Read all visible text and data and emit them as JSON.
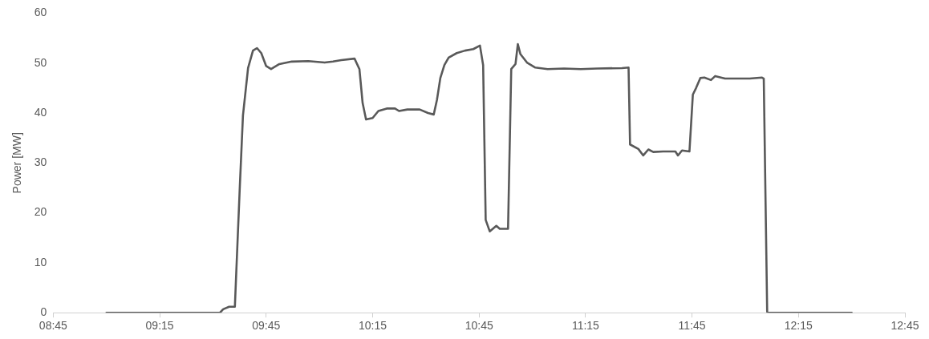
{
  "chart_data": {
    "type": "line",
    "ylabel": "Power [MW]",
    "grid": false,
    "marker": "none",
    "line_style": "solid",
    "legend": false,
    "xlim": [
      8.75,
      12.75
    ],
    "xticks": [
      {
        "value": 8.75,
        "label": "08:45"
      },
      {
        "value": 9.25,
        "label": "09:15"
      },
      {
        "value": 9.75,
        "label": "09:45"
      },
      {
        "value": 10.25,
        "label": "10:15"
      },
      {
        "value": 10.75,
        "label": "10:45"
      },
      {
        "value": 11.25,
        "label": "11:15"
      },
      {
        "value": 11.75,
        "label": "11:45"
      },
      {
        "value": 12.25,
        "label": "12:15"
      },
      {
        "value": 12.75,
        "label": "12:45"
      }
    ],
    "ylim": [
      0,
      60
    ],
    "yticks": [
      0,
      10,
      20,
      30,
      40,
      50,
      60
    ],
    "x": [
      9.0,
      9.533,
      9.548,
      9.576,
      9.603,
      9.61,
      9.626,
      9.641,
      9.665,
      9.688,
      9.707,
      9.727,
      9.75,
      9.773,
      9.812,
      9.87,
      9.948,
      10.025,
      10.064,
      10.103,
      10.165,
      10.188,
      10.203,
      10.219,
      10.25,
      10.277,
      10.316,
      10.355,
      10.374,
      10.413,
      10.471,
      10.51,
      10.537,
      10.552,
      10.568,
      10.587,
      10.607,
      10.645,
      10.684,
      10.723,
      10.754,
      10.769,
      10.781,
      10.8,
      10.831,
      10.847,
      10.886,
      10.901,
      10.921,
      10.932,
      10.944,
      10.975,
      11.014,
      11.072,
      11.149,
      11.227,
      11.304,
      11.421,
      11.452,
      11.459,
      11.498,
      11.521,
      11.545,
      11.568,
      11.614,
      11.672,
      11.684,
      11.703,
      11.738,
      11.754,
      11.769,
      11.789,
      11.808,
      11.839,
      11.859,
      11.905,
      11.963,
      12.021,
      12.079,
      12.087,
      12.103,
      12.118,
      12.5
    ],
    "series": [
      {
        "color": "#595959",
        "values": [
          0,
          0,
          0.7,
          1.2,
          1.2,
          8.5,
          25,
          39.5,
          49,
          52.5,
          53,
          52,
          49.4,
          48.8,
          49.8,
          50.3,
          50.4,
          50.1,
          50.3,
          50.6,
          50.9,
          48.8,
          42,
          38.7,
          39,
          40.4,
          40.9,
          40.9,
          40.4,
          40.7,
          40.7,
          40,
          39.7,
          42.6,
          47,
          49.6,
          51.1,
          52,
          52.5,
          52.8,
          53.5,
          49.6,
          18.6,
          16.3,
          17.4,
          16.8,
          16.8,
          48.8,
          49.8,
          53.8,
          51.8,
          50.1,
          49.1,
          48.8,
          48.9,
          48.8,
          48.9,
          49,
          49.1,
          33.7,
          32.8,
          31.5,
          32.7,
          32.2,
          32.3,
          32.3,
          31.5,
          32.5,
          32.3,
          43.7,
          45,
          47,
          47.1,
          46.6,
          47.4,
          46.9,
          46.9,
          46.9,
          47.1,
          46.9,
          0.2,
          0,
          0
        ]
      }
    ]
  }
}
